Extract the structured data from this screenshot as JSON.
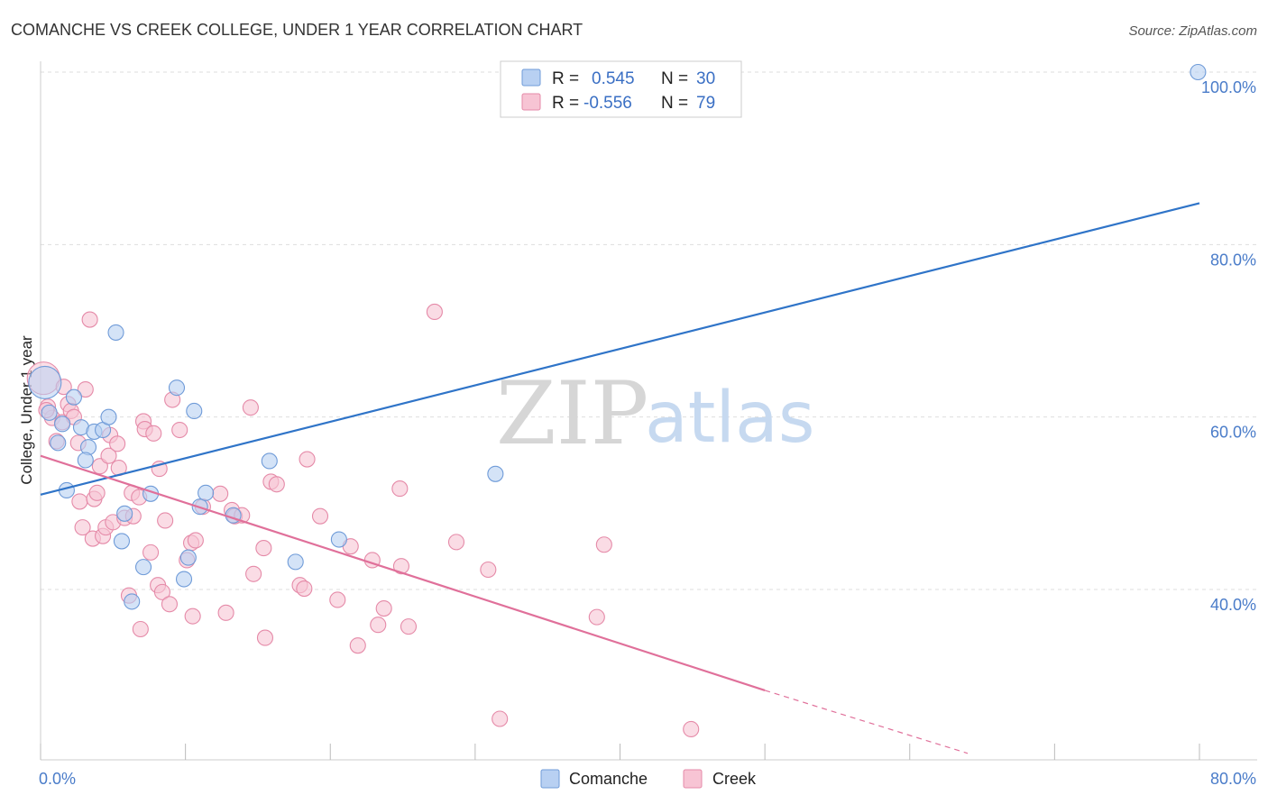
{
  "header": {
    "title": "COMANCHE VS CREEK COLLEGE, UNDER 1 YEAR CORRELATION CHART",
    "source": "Source: ZipAtlas.com"
  },
  "watermark": {
    "zip": "ZIP",
    "atlas": "atlas"
  },
  "legend": {
    "rows": [
      {
        "r_label": "R = ",
        "r_value": "0.545",
        "n_label": "N = ",
        "n_value": "30"
      },
      {
        "r_label": "R = ",
        "r_value": "-0.556",
        "n_label": "N = ",
        "n_value": "79"
      }
    ]
  },
  "bottom_legend": {
    "comanche": "Comanche",
    "creek": "Creek"
  },
  "colors": {
    "comanche_fill": "#b8d0f2",
    "comanche_stroke": "#6f9bd8",
    "comanche_line": "#2f74c8",
    "creek_fill": "#f7c4d4",
    "creek_stroke": "#e58aa8",
    "creek_line": "#e0709a",
    "grid": "#dddddd",
    "tick_label": "#4a7cc9"
  },
  "chart_data": {
    "type": "scatter",
    "title": "COMANCHE VS CREEK COLLEGE, UNDER 1 YEAR CORRELATION CHART",
    "xlabel": "",
    "ylabel": "College, Under 1 year",
    "xlim": [
      0,
      80
    ],
    "ylim": [
      20,
      102
    ],
    "x_tick_labels": [
      {
        "value": 0,
        "label": "0.0%"
      },
      {
        "value": 80,
        "label": "80.0%"
      }
    ],
    "y_tick_labels": [
      {
        "value": 40,
        "label": "40.0%"
      },
      {
        "value": 60,
        "label": "60.0%"
      },
      {
        "value": 80,
        "label": "80.0%"
      },
      {
        "value": 100,
        "label": "100.0%"
      }
    ],
    "grid": true,
    "series": [
      {
        "name": "Comanche",
        "r": 0.545,
        "n": 30,
        "trend": {
          "x": [
            0,
            80
          ],
          "y": [
            51.0,
            84.8
          ]
        },
        "points": [
          {
            "x": 0.3,
            "y": 64.0
          },
          {
            "x": 0.6,
            "y": 60.5
          },
          {
            "x": 1.2,
            "y": 57.0
          },
          {
            "x": 1.5,
            "y": 59.2
          },
          {
            "x": 2.3,
            "y": 62.3
          },
          {
            "x": 2.8,
            "y": 58.8
          },
          {
            "x": 3.3,
            "y": 56.5
          },
          {
            "x": 3.7,
            "y": 58.3
          },
          {
            "x": 4.3,
            "y": 58.5
          },
          {
            "x": 4.7,
            "y": 60.0
          },
          {
            "x": 5.2,
            "y": 69.8
          },
          {
            "x": 5.6,
            "y": 45.6
          },
          {
            "x": 5.8,
            "y": 48.8
          },
          {
            "x": 6.3,
            "y": 38.6
          },
          {
            "x": 7.1,
            "y": 42.6
          },
          {
            "x": 7.6,
            "y": 51.1
          },
          {
            "x": 9.4,
            "y": 63.4
          },
          {
            "x": 9.9,
            "y": 41.2
          },
          {
            "x": 10.2,
            "y": 43.7
          },
          {
            "x": 10.6,
            "y": 60.7
          },
          {
            "x": 11.0,
            "y": 49.6
          },
          {
            "x": 11.4,
            "y": 51.2
          },
          {
            "x": 13.3,
            "y": 48.6
          },
          {
            "x": 15.8,
            "y": 54.9
          },
          {
            "x": 17.6,
            "y": 43.2
          },
          {
            "x": 20.6,
            "y": 45.8
          },
          {
            "x": 31.4,
            "y": 53.4
          },
          {
            "x": 79.9,
            "y": 100.0
          },
          {
            "x": 1.8,
            "y": 51.5
          },
          {
            "x": 3.1,
            "y": 55.0
          }
        ]
      },
      {
        "name": "Creek",
        "r": -0.556,
        "n": 79,
        "trend": {
          "x": [
            0,
            50
          ],
          "y": [
            55.5,
            28.3
          ]
        },
        "trend_dashed": {
          "x": [
            50,
            64
          ],
          "y": [
            28.3,
            21.0
          ]
        },
        "points": [
          {
            "x": 0.2,
            "y": 64.5
          },
          {
            "x": 0.5,
            "y": 61.2
          },
          {
            "x": 0.8,
            "y": 59.9
          },
          {
            "x": 1.1,
            "y": 57.2
          },
          {
            "x": 1.5,
            "y": 59.4
          },
          {
            "x": 1.6,
            "y": 63.5
          },
          {
            "x": 1.9,
            "y": 61.5
          },
          {
            "x": 2.1,
            "y": 60.7
          },
          {
            "x": 2.3,
            "y": 60.0
          },
          {
            "x": 2.6,
            "y": 57.0
          },
          {
            "x": 2.7,
            "y": 50.2
          },
          {
            "x": 2.9,
            "y": 47.2
          },
          {
            "x": 3.1,
            "y": 63.2
          },
          {
            "x": 3.4,
            "y": 71.3
          },
          {
            "x": 3.6,
            "y": 45.9
          },
          {
            "x": 3.7,
            "y": 50.5
          },
          {
            "x": 3.9,
            "y": 51.2
          },
          {
            "x": 4.1,
            "y": 54.3
          },
          {
            "x": 4.3,
            "y": 46.2
          },
          {
            "x": 4.5,
            "y": 47.2
          },
          {
            "x": 4.7,
            "y": 55.5
          },
          {
            "x": 4.8,
            "y": 57.9
          },
          {
            "x": 5.0,
            "y": 47.8
          },
          {
            "x": 5.3,
            "y": 56.9
          },
          {
            "x": 5.4,
            "y": 54.1
          },
          {
            "x": 5.8,
            "y": 48.3
          },
          {
            "x": 6.1,
            "y": 39.3
          },
          {
            "x": 6.3,
            "y": 51.2
          },
          {
            "x": 6.4,
            "y": 48.5
          },
          {
            "x": 6.8,
            "y": 50.7
          },
          {
            "x": 6.9,
            "y": 35.4
          },
          {
            "x": 7.1,
            "y": 59.5
          },
          {
            "x": 7.2,
            "y": 58.6
          },
          {
            "x": 7.6,
            "y": 44.3
          },
          {
            "x": 7.8,
            "y": 58.1
          },
          {
            "x": 8.1,
            "y": 40.5
          },
          {
            "x": 8.2,
            "y": 54.0
          },
          {
            "x": 8.4,
            "y": 39.7
          },
          {
            "x": 8.6,
            "y": 48.0
          },
          {
            "x": 8.9,
            "y": 38.3
          },
          {
            "x": 9.1,
            "y": 62.0
          },
          {
            "x": 9.6,
            "y": 58.5
          },
          {
            "x": 10.1,
            "y": 43.4
          },
          {
            "x": 10.4,
            "y": 45.4
          },
          {
            "x": 10.7,
            "y": 45.7
          },
          {
            "x": 10.5,
            "y": 36.9
          },
          {
            "x": 11.2,
            "y": 49.6
          },
          {
            "x": 12.4,
            "y": 51.1
          },
          {
            "x": 12.8,
            "y": 37.3
          },
          {
            "x": 13.2,
            "y": 49.2
          },
          {
            "x": 13.4,
            "y": 48.5
          },
          {
            "x": 13.9,
            "y": 48.6
          },
          {
            "x": 14.5,
            "y": 61.1
          },
          {
            "x": 14.7,
            "y": 41.8
          },
          {
            "x": 15.4,
            "y": 44.8
          },
          {
            "x": 15.5,
            "y": 34.4
          },
          {
            "x": 15.9,
            "y": 52.5
          },
          {
            "x": 16.3,
            "y": 52.2
          },
          {
            "x": 17.9,
            "y": 40.5
          },
          {
            "x": 18.2,
            "y": 40.1
          },
          {
            "x": 18.4,
            "y": 55.1
          },
          {
            "x": 19.3,
            "y": 48.5
          },
          {
            "x": 20.5,
            "y": 38.8
          },
          {
            "x": 21.4,
            "y": 45.0
          },
          {
            "x": 21.9,
            "y": 33.5
          },
          {
            "x": 22.9,
            "y": 43.4
          },
          {
            "x": 23.3,
            "y": 35.9
          },
          {
            "x": 23.7,
            "y": 37.8
          },
          {
            "x": 24.8,
            "y": 51.7
          },
          {
            "x": 24.9,
            "y": 42.7
          },
          {
            "x": 25.4,
            "y": 35.7
          },
          {
            "x": 27.2,
            "y": 72.2
          },
          {
            "x": 28.7,
            "y": 45.5
          },
          {
            "x": 30.9,
            "y": 42.3
          },
          {
            "x": 31.7,
            "y": 25.0
          },
          {
            "x": 38.4,
            "y": 36.8
          },
          {
            "x": 38.9,
            "y": 45.2
          },
          {
            "x": 44.9,
            "y": 23.8
          },
          {
            "x": 0.4,
            "y": 60.8
          }
        ]
      }
    ]
  }
}
